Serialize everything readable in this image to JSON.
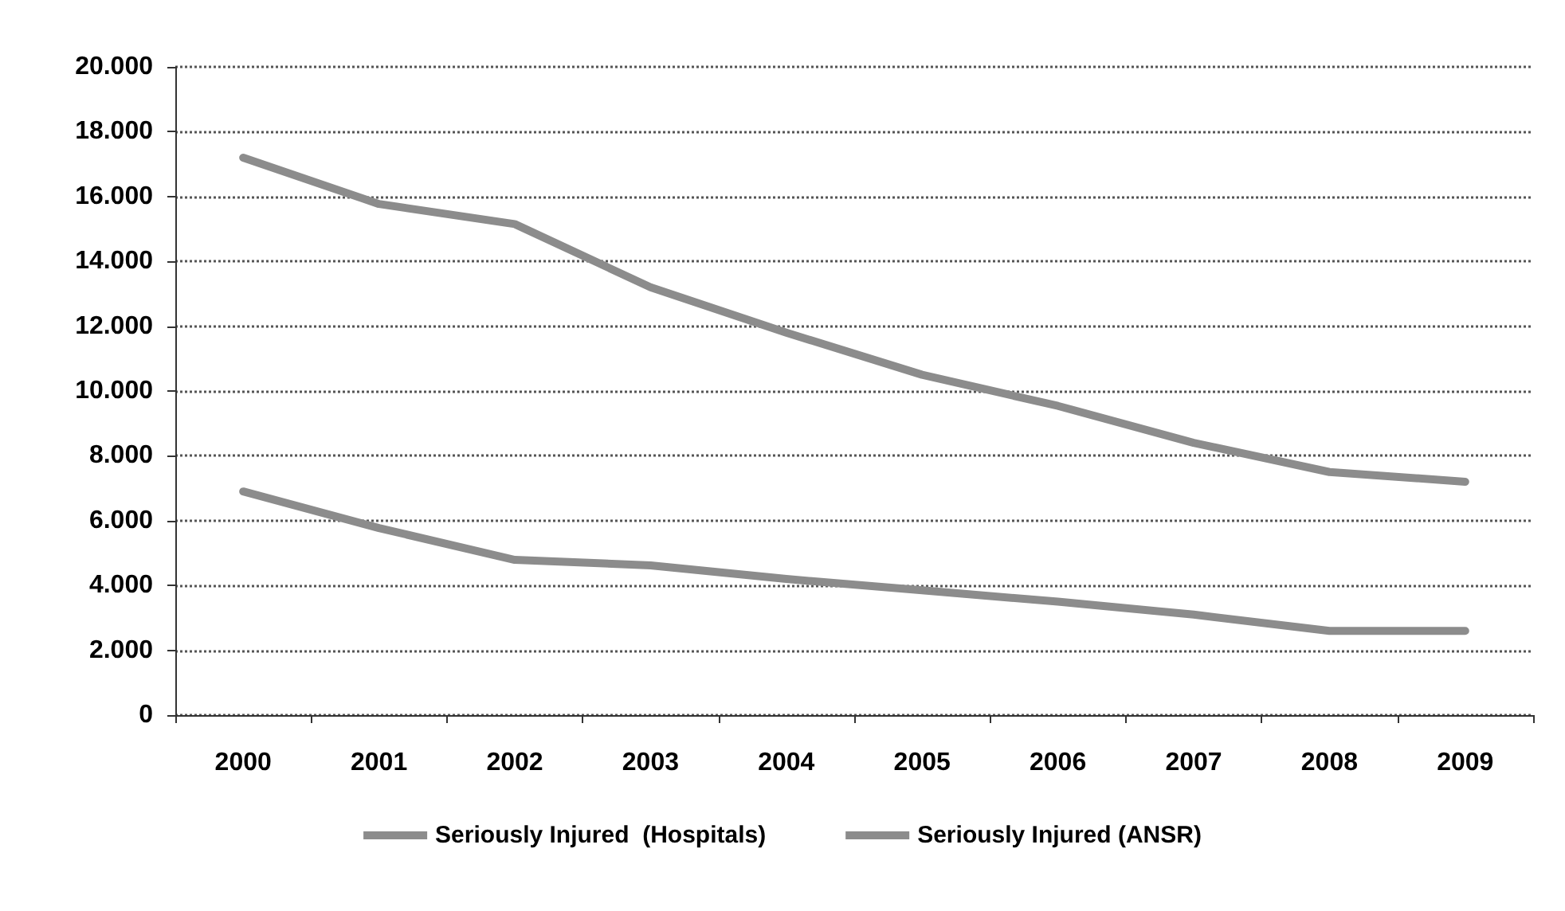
{
  "chart_data": {
    "type": "line",
    "categories": [
      "2000",
      "2001",
      "2002",
      "2003",
      "2004",
      "2005",
      "2006",
      "2007",
      "2008",
      "2009"
    ],
    "series": [
      {
        "name": "Seriously Injured  (Hospitals)",
        "color": "#8c8c8c",
        "values": [
          17200,
          15770,
          15150,
          13200,
          11800,
          10500,
          9540,
          8400,
          7500,
          7200
        ]
      },
      {
        "name": "Seriously Injured (ANSR)",
        "color": "#8c8c8c",
        "values": [
          6900,
          5770,
          4790,
          4620,
          4200,
          3850,
          3500,
          3100,
          2600,
          2600
        ]
      }
    ],
    "ylim": [
      0,
      20000
    ],
    "yticks": [
      {
        "value": 0,
        "label": "0"
      },
      {
        "value": 2000,
        "label": "2.000"
      },
      {
        "value": 4000,
        "label": "4.000"
      },
      {
        "value": 6000,
        "label": "6.000"
      },
      {
        "value": 8000,
        "label": "8.000"
      },
      {
        "value": 10000,
        "label": "10.000"
      },
      {
        "value": 12000,
        "label": "12.000"
      },
      {
        "value": 14000,
        "label": "14.000"
      },
      {
        "value": 16000,
        "label": "16.000"
      },
      {
        "value": 18000,
        "label": "18.000"
      },
      {
        "value": 20000,
        "label": "20.000"
      }
    ],
    "grid": "y",
    "legend": "bottom",
    "marker": "none",
    "line_style": "solid"
  }
}
